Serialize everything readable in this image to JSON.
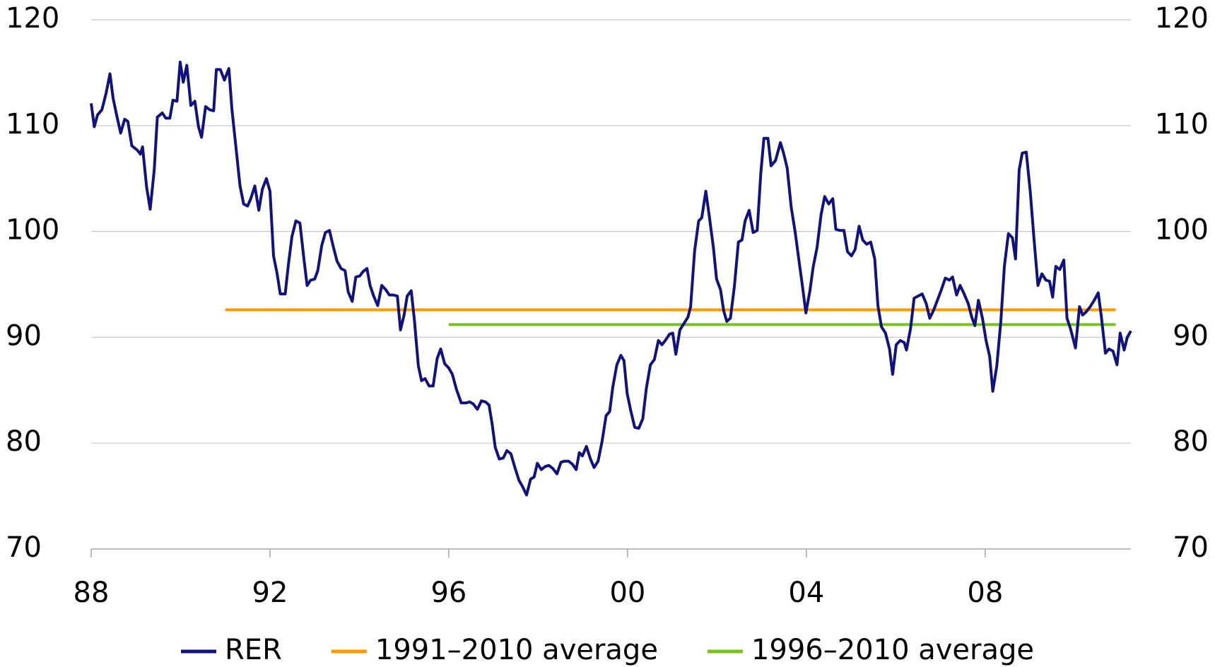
{
  "chart_data": {
    "type": "line",
    "xlim": [
      1988,
      2011.26
    ],
    "xticks": [
      {
        "value": 1988,
        "label": "88"
      },
      {
        "value": 1992,
        "label": "92"
      },
      {
        "value": 1996,
        "label": "96"
      },
      {
        "value": 2000,
        "label": "00"
      },
      {
        "value": 2004,
        "label": "04"
      },
      {
        "value": 2008,
        "label": "08"
      }
    ],
    "ylim": [
      70,
      120
    ],
    "yticks": [
      70,
      80,
      90,
      100,
      110,
      120
    ],
    "y2lim": [
      70,
      120
    ],
    "y2ticks": [
      70,
      80,
      90,
      100,
      110,
      120
    ],
    "grid": true,
    "legend": "bottom",
    "series": [
      {
        "name": "RER",
        "color": "#10137f",
        "x": [
          1988.0,
          1988.07,
          1988.14,
          1988.24,
          1988.33,
          1988.42,
          1988.49,
          1988.57,
          1988.66,
          1988.75,
          1988.82,
          1988.91,
          1989.03,
          1989.1,
          1989.15,
          1989.24,
          1989.32,
          1989.41,
          1989.48,
          1989.59,
          1989.67,
          1989.76,
          1989.83,
          1989.92,
          1989.99,
          1990.06,
          1990.14,
          1990.23,
          1990.32,
          1990.4,
          1990.47,
          1990.56,
          1990.65,
          1990.74,
          1990.8,
          1990.89,
          1990.98,
          1991.08,
          1991.15,
          1991.24,
          1991.33,
          1991.41,
          1991.5,
          1991.57,
          1991.66,
          1991.75,
          1991.83,
          1991.92,
          1992.0,
          1992.08,
          1992.16,
          1992.23,
          1992.34,
          1992.41,
          1992.49,
          1992.58,
          1992.67,
          1992.76,
          1992.83,
          1992.91,
          1993.0,
          1993.07,
          1993.16,
          1993.24,
          1993.33,
          1993.42,
          1993.5,
          1993.59,
          1993.68,
          1993.75,
          1993.84,
          1993.92,
          1994.01,
          1994.08,
          1994.17,
          1994.24,
          1994.32,
          1994.41,
          1994.5,
          1994.59,
          1994.67,
          1994.76,
          1994.85,
          1994.92,
          1995.0,
          1995.07,
          1995.16,
          1995.23,
          1995.32,
          1995.39,
          1995.47,
          1995.56,
          1995.65,
          1995.74,
          1995.82,
          1995.91,
          1996.0,
          1996.08,
          1996.17,
          1996.28,
          1996.38,
          1996.47,
          1996.55,
          1996.64,
          1996.73,
          1996.82,
          1996.9,
          1996.97,
          1997.04,
          1997.13,
          1997.22,
          1997.3,
          1997.39,
          1997.48,
          1997.57,
          1997.65,
          1997.74,
          1997.83,
          1997.91,
          1997.98,
          1998.07,
          1998.16,
          1998.24,
          1998.33,
          1998.42,
          1998.51,
          1998.59,
          1998.68,
          1998.77,
          1998.85,
          1998.92,
          1998.99,
          1999.08,
          1999.17,
          1999.25,
          1999.34,
          1999.43,
          1999.52,
          1999.6,
          1999.67,
          1999.76,
          1999.85,
          1999.92,
          1999.99,
          2000.07,
          2000.16,
          2000.25,
          2000.34,
          2000.42,
          2000.51,
          2000.6,
          2000.69,
          2000.77,
          2000.86,
          2000.94,
          2001.01,
          2001.08,
          2001.17,
          2001.26,
          2001.35,
          2001.41,
          2001.5,
          2001.59,
          2001.66,
          2001.75,
          2001.83,
          2001.92,
          2001.99,
          2002.08,
          2002.15,
          2002.22,
          2002.3,
          2002.39,
          2002.48,
          2002.56,
          2002.63,
          2002.72,
          2002.81,
          2002.9,
          2002.98,
          2003.05,
          2003.14,
          2003.21,
          2003.31,
          2003.42,
          2003.49,
          2003.57,
          2003.66,
          2003.75,
          2003.84,
          2003.91,
          2003.99,
          2004.08,
          2004.15,
          2004.24,
          2004.33,
          2004.41,
          2004.5,
          2004.59,
          2004.66,
          2004.75,
          2004.84,
          2004.92,
          2005.01,
          2005.09,
          2005.18,
          2005.26,
          2005.35,
          2005.44,
          2005.53,
          2005.6,
          2005.68,
          2005.77,
          2005.86,
          2005.93,
          2006.01,
          2006.1,
          2006.19,
          2006.24,
          2006.33,
          2006.41,
          2006.5,
          2006.59,
          2006.68,
          2006.76,
          2006.85,
          2006.94,
          2007.02,
          2007.11,
          2007.2,
          2007.27,
          2007.36,
          2007.44,
          2007.53,
          2007.62,
          2007.7,
          2007.77,
          2007.85,
          2007.94,
          2008.02,
          2008.1,
          2008.17,
          2008.26,
          2008.35,
          2008.43,
          2008.52,
          2008.61,
          2008.68,
          2008.76,
          2008.83,
          2008.92,
          2009.01,
          2009.09,
          2009.18,
          2009.27,
          2009.36,
          2009.44,
          2009.51,
          2009.58,
          2009.67,
          2009.76,
          2009.83,
          2009.91,
          2010.02,
          2010.11,
          2010.18,
          2010.26,
          2010.35,
          2010.44,
          2010.53,
          2010.6,
          2010.69,
          2010.77,
          2010.86,
          2010.95,
          2011.02,
          2011.11,
          2011.18,
          2011.26
        ],
        "values": [
          112.1,
          109.9,
          111.0,
          111.5,
          113.0,
          114.9,
          112.6,
          111.0,
          109.3,
          110.6,
          110.4,
          108.1,
          107.7,
          107.3,
          108.0,
          104.2,
          102.1,
          105.8,
          110.8,
          111.2,
          110.7,
          110.7,
          112.4,
          112.3,
          116.0,
          114.1,
          115.7,
          111.9,
          112.3,
          109.9,
          108.9,
          111.8,
          111.5,
          111.4,
          115.3,
          115.3,
          114.3,
          115.4,
          111.5,
          107.9,
          104.3,
          102.6,
          102.4,
          103.1,
          104.3,
          102.0,
          104.0,
          105.0,
          103.8,
          97.7,
          96.0,
          94.1,
          94.1,
          96.8,
          99.5,
          101.0,
          100.8,
          97.4,
          94.9,
          95.4,
          95.5,
          96.3,
          98.7,
          99.9,
          100.1,
          98.5,
          97.2,
          96.5,
          96.3,
          94.3,
          93.4,
          95.7,
          95.8,
          96.2,
          96.5,
          94.9,
          93.9,
          93.0,
          94.9,
          94.5,
          94.0,
          94.0,
          93.9,
          90.7,
          92.1,
          93.9,
          94.4,
          91.7,
          87.3,
          85.9,
          86.1,
          85.4,
          85.4,
          88.0,
          88.9,
          87.5,
          87.1,
          86.5,
          85.1,
          83.8,
          83.8,
          83.9,
          83.7,
          83.2,
          84.0,
          83.9,
          83.6,
          81.8,
          79.6,
          78.5,
          78.6,
          79.3,
          79.0,
          77.7,
          76.5,
          75.9,
          75.1,
          76.6,
          76.8,
          78.1,
          77.5,
          77.8,
          77.9,
          77.6,
          77.1,
          78.2,
          78.3,
          78.3,
          78.0,
          77.5,
          79.1,
          78.8,
          79.7,
          78.5,
          77.7,
          78.3,
          80.2,
          82.6,
          83.0,
          85.3,
          87.4,
          88.3,
          87.8,
          84.7,
          83.1,
          81.5,
          81.4,
          82.3,
          85.2,
          87.4,
          87.9,
          89.7,
          89.3,
          89.8,
          90.3,
          90.4,
          88.4,
          90.7,
          91.3,
          91.9,
          92.9,
          98.2,
          101.0,
          101.3,
          103.8,
          101.4,
          98.5,
          95.5,
          94.5,
          92.5,
          91.5,
          91.8,
          94.8,
          99.0,
          99.2,
          101.0,
          102.0,
          99.9,
          100.1,
          105.5,
          108.8,
          108.8,
          106.2,
          106.7,
          108.4,
          107.4,
          106.0,
          102.3,
          99.9,
          97.1,
          94.9,
          92.3,
          94.4,
          96.6,
          98.5,
          101.6,
          103.3,
          102.6,
          103.1,
          100.2,
          100.1,
          100.1,
          98.1,
          97.7,
          98.3,
          100.5,
          99.2,
          98.8,
          99.0,
          97.4,
          93.0,
          91.0,
          90.4,
          88.9,
          86.5,
          89.3,
          89.7,
          89.5,
          88.8,
          90.8,
          93.7,
          93.9,
          94.1,
          93.2,
          91.8,
          92.6,
          93.6,
          94.5,
          95.6,
          95.4,
          95.7,
          94.0,
          94.9,
          94.1,
          93.2,
          91.9,
          91.1,
          93.5,
          91.8,
          89.7,
          88.2,
          84.9,
          87.3,
          91.5,
          96.7,
          99.8,
          99.4,
          97.4,
          105.8,
          107.4,
          107.5,
          103.7,
          99.4,
          94.9,
          96.0,
          95.4,
          95.3,
          93.8,
          96.7,
          96.4,
          97.3,
          91.8,
          90.8,
          89.0,
          92.9,
          92.1,
          92.4,
          92.9,
          93.5,
          94.2,
          91.9,
          88.5,
          88.9,
          88.7,
          87.4,
          90.4,
          88.8,
          90.0,
          90.6
        ]
      },
      {
        "name": "1991–2010 average",
        "color": "#ff9a00",
        "x": [
          1991.0,
          2010.92
        ],
        "values": [
          92.6,
          92.6
        ]
      },
      {
        "name": "1996–2010 average",
        "color": "#77c31a",
        "x": [
          1996.0,
          2010.92
        ],
        "values": [
          91.2,
          91.2
        ]
      }
    ]
  }
}
